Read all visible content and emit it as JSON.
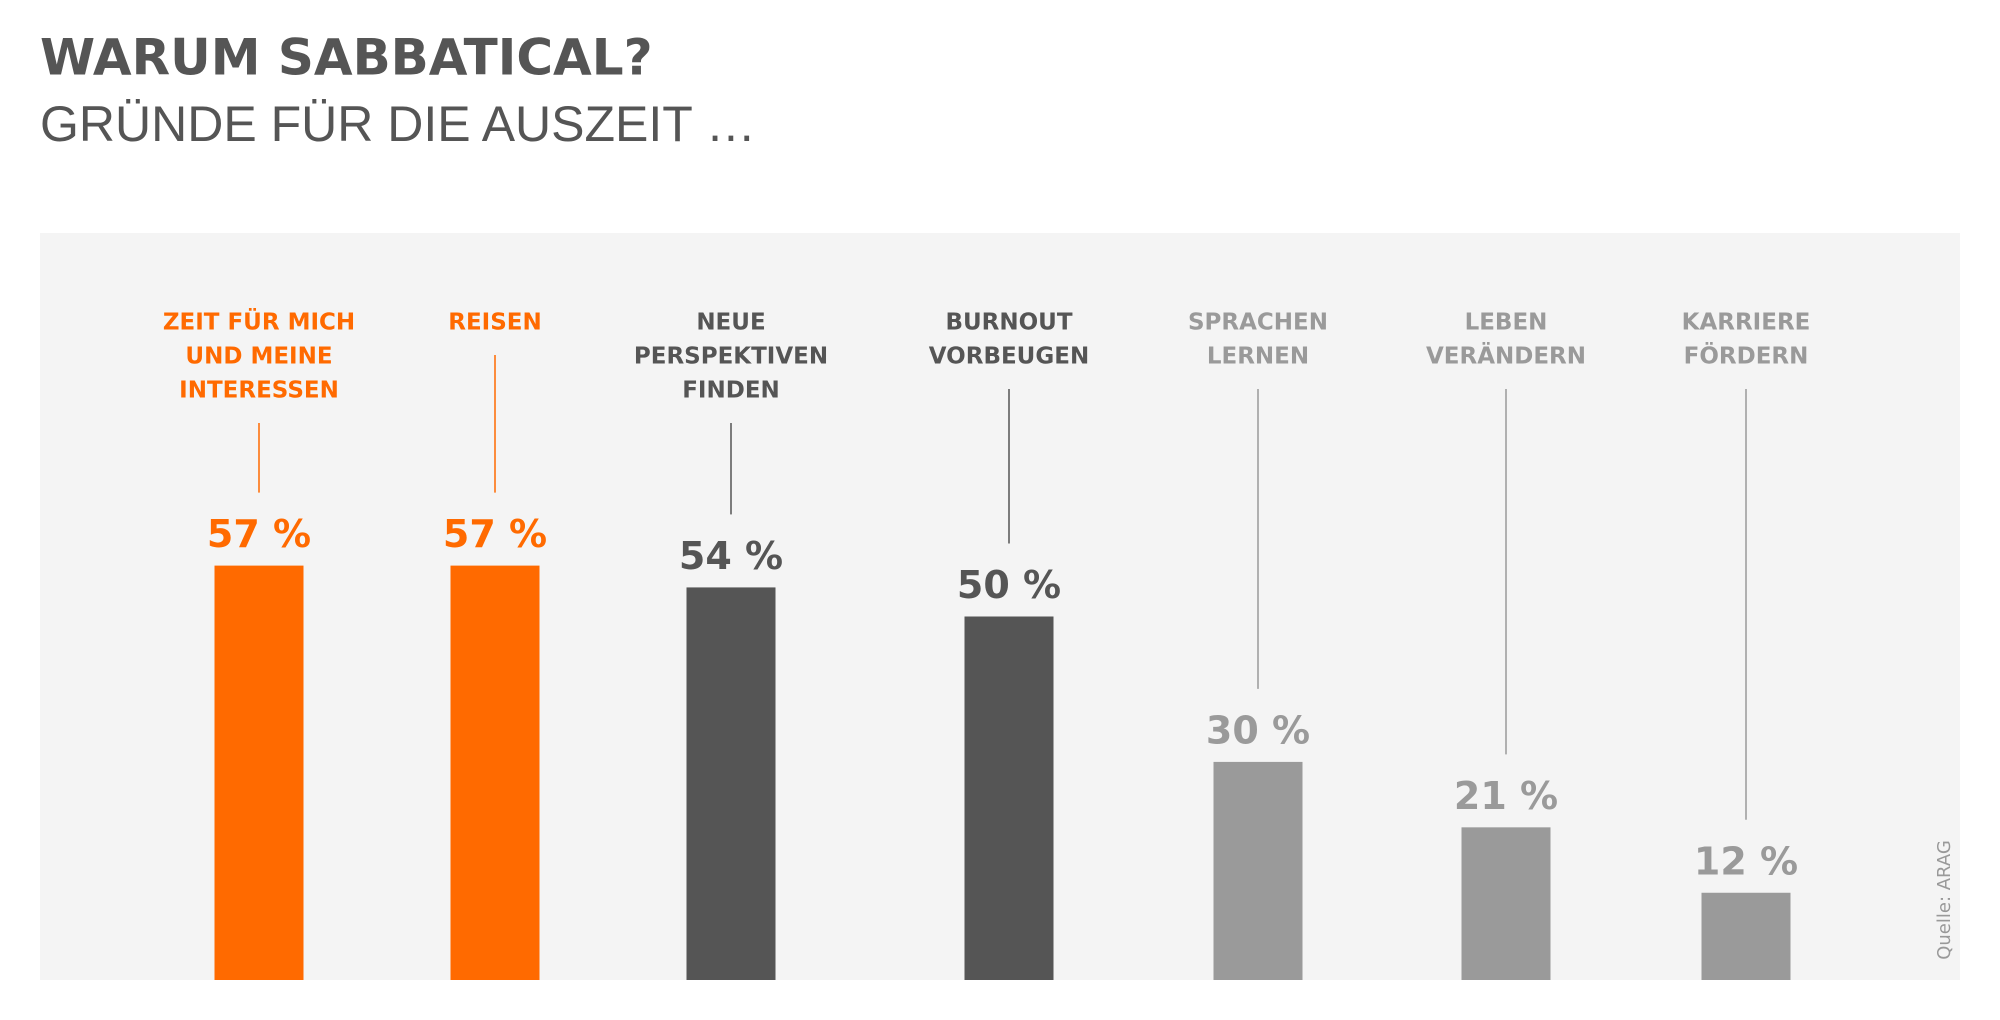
{
  "chart_data": {
    "type": "bar",
    "title": "WARUM SABBATICAL?",
    "subtitle": "GRÜNDE FÜR DIE AUSZEIT …",
    "categories": [
      [
        "ZEIT FÜR MICH",
        "UND MEINE",
        "INTERESSEN"
      ],
      [
        "REISEN"
      ],
      [
        "NEUE",
        "PERSPEKTIVEN",
        "FINDEN"
      ],
      [
        "BURNOUT",
        "VORBEUGEN"
      ],
      [
        "SPRACHEN",
        "LERNEN"
      ],
      [
        "LEBEN",
        "VERÄNDERN"
      ],
      [
        "KARRIERE",
        "FÖRDERN"
      ]
    ],
    "values": [
      57,
      57,
      54,
      50,
      30,
      21,
      12
    ],
    "value_labels": [
      "57 %",
      "57 %",
      "54 %",
      "50 %",
      "30 %",
      "21 %",
      "12 %"
    ],
    "colors": [
      "#ff6a00",
      "#ff6a00",
      "#555555",
      "#555555",
      "#9a9a9a",
      "#9a9a9a",
      "#9a9a9a"
    ],
    "source": "Quelle: ARAG"
  }
}
